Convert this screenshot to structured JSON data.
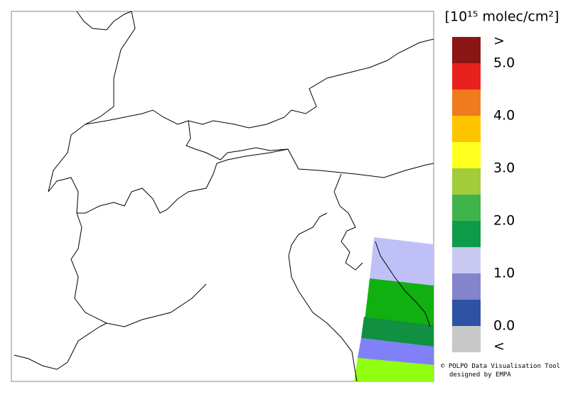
{
  "legend": {
    "unit": "[10¹⁵ molec/cm²]",
    "colors": [
      "#8b1414",
      "#e8201e",
      "#f07a1e",
      "#ffc400",
      "#ffff1e",
      "#a2cc3a",
      "#3fb44a",
      "#0f9a4a",
      "#c8c8f0",
      "#8484cc",
      "#2e52a4",
      "#c8c8c8"
    ],
    "labels": [
      ">",
      "5.0",
      "4.0",
      "3.0",
      "2.0",
      "1.0",
      "0.0",
      "<"
    ]
  },
  "credits": [
    "© POLPO Data Visualisation Tool",
    "designed by EMPA"
  ]
}
